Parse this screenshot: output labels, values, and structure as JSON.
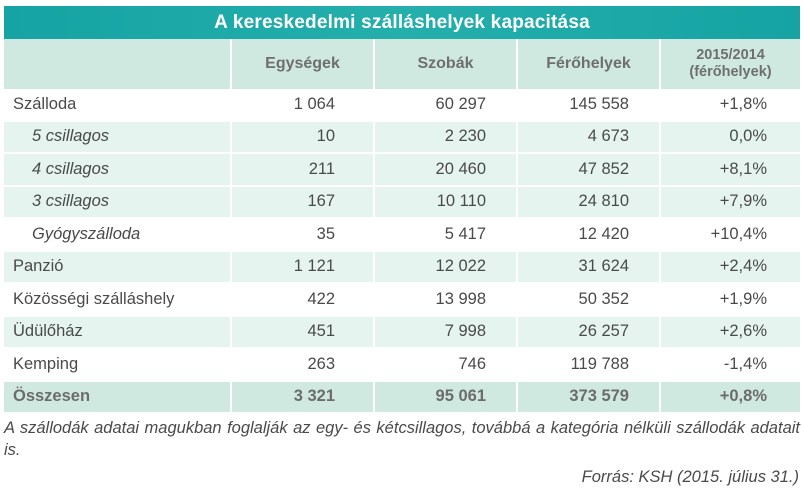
{
  "title": "A kereskedelmi szálláshelyek kapacitása",
  "headers": [
    "",
    "Egységek",
    "Szobák",
    "Férőhelyek",
    "2015/2014",
    "(férőhelyek)"
  ],
  "rows": [
    {
      "kind": "main",
      "name": "Szálloda",
      "units": "1 064",
      "rooms": "60 297",
      "beds": "145 558",
      "change": "+1,8%"
    },
    {
      "kind": "sub",
      "name": "5 csillagos",
      "units": "10",
      "rooms": "2 230",
      "beds": "4 673",
      "change": "0,0%"
    },
    {
      "kind": "sub",
      "name": "4 csillagos",
      "units": "211",
      "rooms": "20 460",
      "beds": "47 852",
      "change": "+8,1%"
    },
    {
      "kind": "sub",
      "name": "3 csillagos",
      "units": "167",
      "rooms": "10 110",
      "beds": "24 810",
      "change": "+7,9%"
    },
    {
      "kind": "main",
      "name": "Gyógyszálloda",
      "units": "35",
      "rooms": "5 417",
      "beds": "12 420",
      "change": "+10,4%",
      "italic": true
    },
    {
      "kind": "sub",
      "name": "Panzió",
      "units": "1 121",
      "rooms": "12 022",
      "beds": "31 624",
      "change": "+2,4%",
      "upright": true
    },
    {
      "kind": "main",
      "name": "Közösségi szálláshely",
      "units": "422",
      "rooms": "13 998",
      "beds": "50 352",
      "change": "+1,9%"
    },
    {
      "kind": "sub",
      "name": "Üdülőház",
      "units": "451",
      "rooms": "7 998",
      "beds": "26 257",
      "change": "+2,6%",
      "upright": true
    },
    {
      "kind": "main",
      "name": "Kemping",
      "units": "263",
      "rooms": "746",
      "beds": "119 788",
      "change": "-1,4%"
    }
  ],
  "total": {
    "name": "Összesen",
    "units": "3 321",
    "rooms": "95 061",
    "beds": "373 579",
    "change": "+0,8%"
  },
  "footnote": "A szállodák adatai magukban foglalják az egy- és kétcsillagos, továbbá a kategória nélküli szállodák adatait is.",
  "source": "Forrás: KSH (2015. július 31.)"
}
